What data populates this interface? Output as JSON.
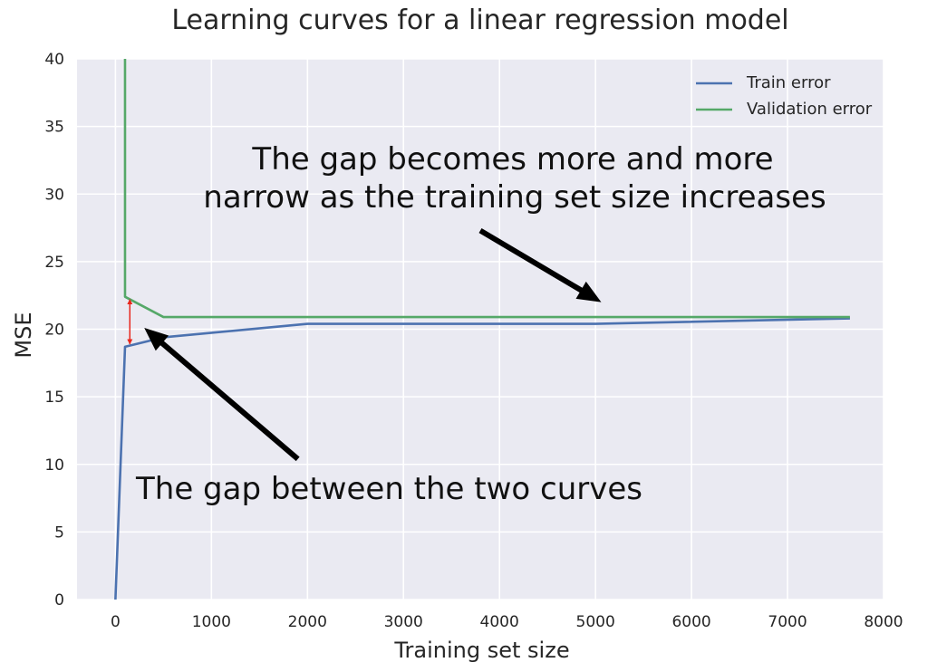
{
  "chart_data": {
    "type": "line",
    "title": "Learning curves for a linear regression model",
    "xlabel": "Training set size",
    "ylabel": "MSE",
    "xlim": [
      -400,
      8000
    ],
    "ylim": [
      0,
      40
    ],
    "xticks": [
      "0",
      "1000",
      "2000",
      "3000",
      "4000",
      "5000",
      "6000",
      "7000",
      "8000"
    ],
    "yticks": [
      "0",
      "5",
      "10",
      "15",
      "20",
      "25",
      "30",
      "35",
      "40"
    ],
    "grid": true,
    "legend_position": "top-right",
    "series": [
      {
        "name": "Train error",
        "color": "#4c72b0",
        "x": [
          0,
          100,
          500,
          2000,
          5000,
          7650
        ],
        "y": [
          0,
          18.7,
          19.4,
          20.4,
          20.4,
          20.8
        ]
      },
      {
        "name": "Validation error",
        "color": "#55a868",
        "x": [
          100,
          100,
          500,
          2000,
          5000,
          7650
        ],
        "y": [
          40,
          22.4,
          20.9,
          20.9,
          20.9,
          20.9
        ]
      }
    ],
    "annotations": [
      {
        "lines": [
          "The gap becomes more and more",
          "narrow as the training set size increases"
        ],
        "arrow_from": [
          3800,
          27.3
        ],
        "arrow_to": [
          5060,
          22.0
        ]
      },
      {
        "lines": [
          "The gap between the two curves"
        ],
        "arrow_from": [
          1900,
          10.4
        ],
        "arrow_to": [
          300,
          20.1
        ]
      }
    ],
    "gap_marker": {
      "x": 150,
      "y_top": 22.4,
      "y_bottom": 18.7,
      "color": "#e8261c"
    }
  }
}
